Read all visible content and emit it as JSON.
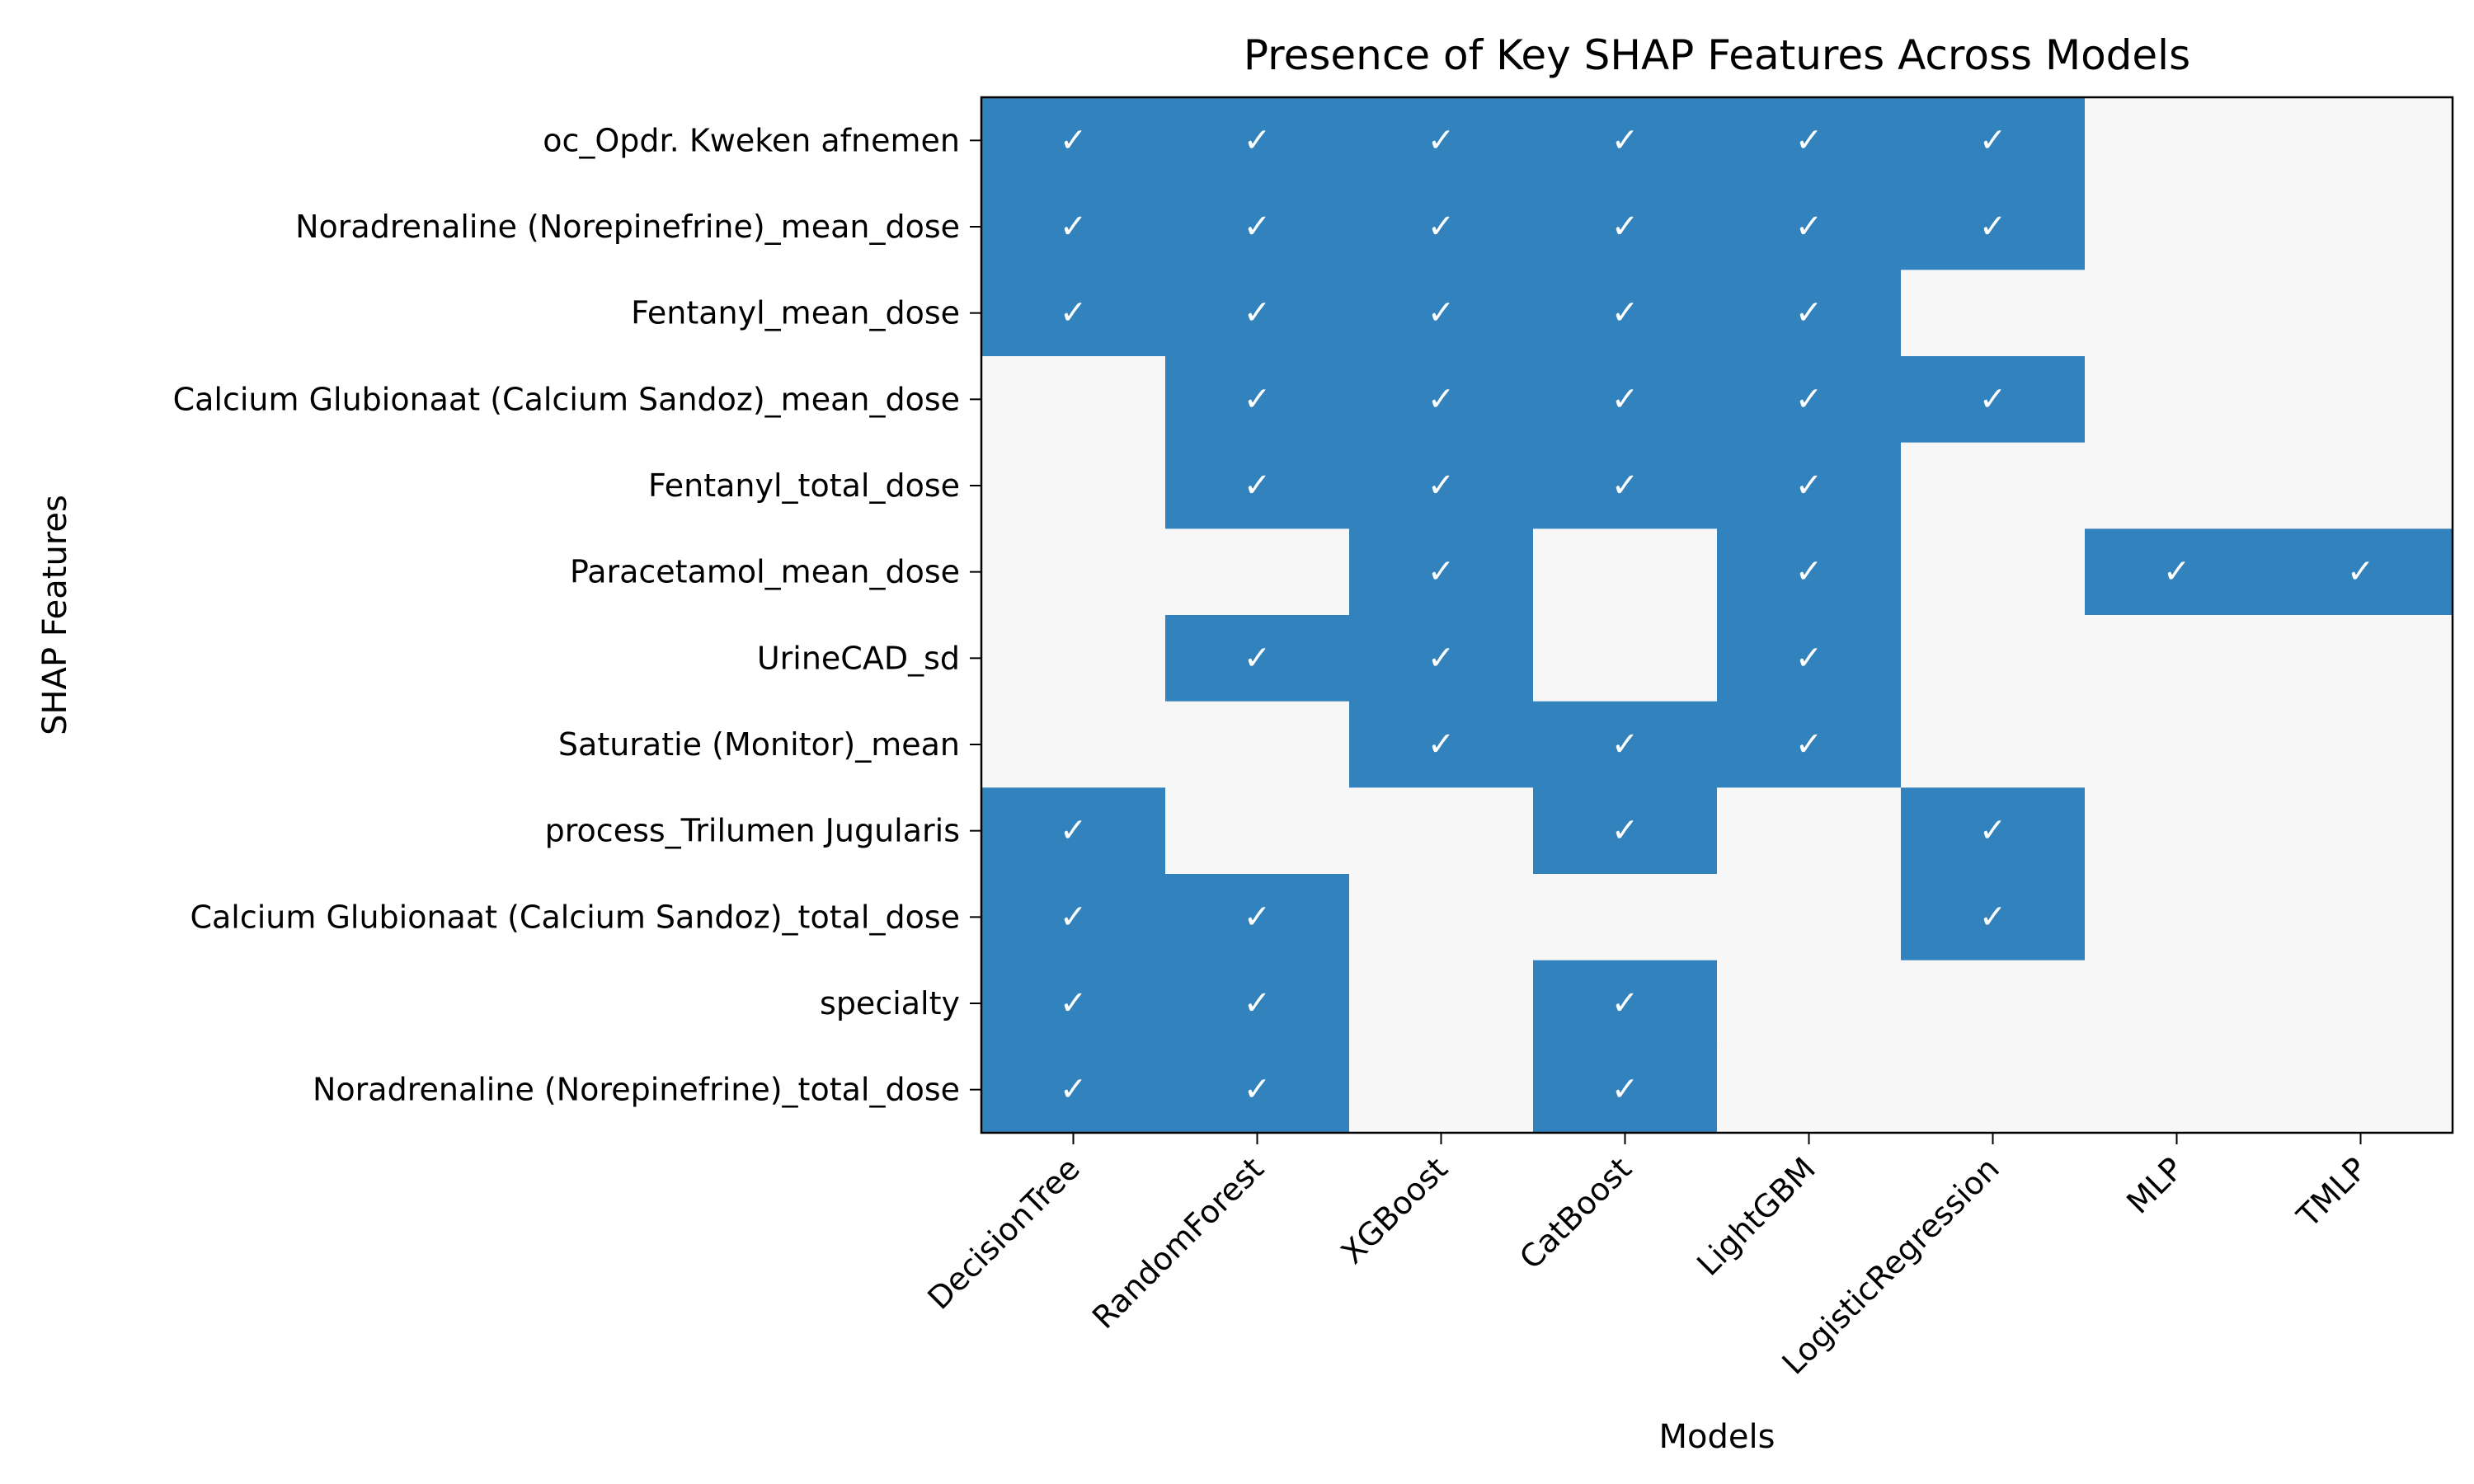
{
  "chart_data": {
    "type": "heatmap",
    "title": "Presence of Key SHAP Features Across Models",
    "xlabel": "Models",
    "ylabel": "SHAP Features",
    "x_categories": [
      "DecisionTree",
      "RandomForest",
      "XGBoost",
      "CatBoost",
      "LightGBM",
      "LogisticRegression",
      "MLP",
      "TMLP"
    ],
    "y_categories": [
      "oc_Opdr. Kweken afnemen",
      "Noradrenaline (Norepinefrine)_mean_dose",
      "Fentanyl_mean_dose",
      "Calcium Glubionaat (Calcium Sandoz)_mean_dose",
      "Fentanyl_total_dose",
      "Paracetamol_mean_dose",
      "UrineCAD_sd",
      "Saturatie (Monitor)_mean",
      "process_Trilumen Jugularis",
      "Calcium Glubionaat (Calcium Sandoz)_total_dose",
      "specialty",
      "Noradrenaline (Norepinefrine)_total_dose"
    ],
    "values": [
      [
        1,
        1,
        1,
        1,
        1,
        1,
        0,
        0
      ],
      [
        1,
        1,
        1,
        1,
        1,
        1,
        0,
        0
      ],
      [
        1,
        1,
        1,
        1,
        1,
        0,
        0,
        0
      ],
      [
        0,
        1,
        1,
        1,
        1,
        1,
        0,
        0
      ],
      [
        0,
        1,
        1,
        1,
        1,
        0,
        0,
        0
      ],
      [
        0,
        0,
        1,
        0,
        1,
        0,
        1,
        1
      ],
      [
        0,
        1,
        1,
        0,
        1,
        0,
        0,
        0
      ],
      [
        0,
        0,
        1,
        1,
        1,
        0,
        0,
        0
      ],
      [
        1,
        0,
        0,
        1,
        0,
        1,
        0,
        0
      ],
      [
        1,
        1,
        0,
        0,
        0,
        1,
        0,
        0
      ],
      [
        1,
        1,
        0,
        1,
        0,
        0,
        0,
        0
      ],
      [
        1,
        1,
        0,
        1,
        0,
        0,
        0,
        0
      ]
    ],
    "present_marker": "✓",
    "colors": {
      "present": "#3182bd",
      "absent": "#f7f7f7",
      "check": "#ffffff"
    },
    "grid": false,
    "legend": "none"
  }
}
